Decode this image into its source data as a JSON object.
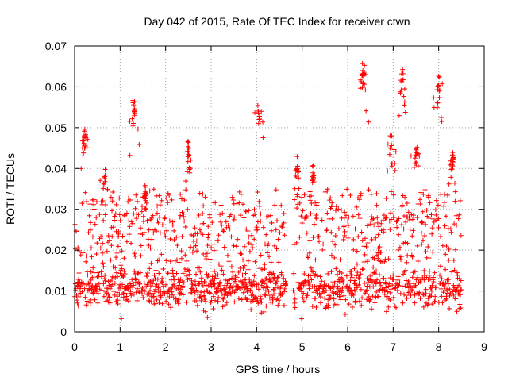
{
  "chart_data": {
    "type": "scatter",
    "title": "Day 042 of 2015, Rate Of TEC Index for receiver ctwn",
    "xlabel": "GPS time / hours",
    "ylabel": "ROTI / TECUs",
    "xlim": [
      0,
      9
    ],
    "ylim": [
      0,
      0.07
    ],
    "xticks": [
      0,
      1,
      2,
      3,
      4,
      5,
      6,
      7,
      8,
      9
    ],
    "xtick_labels": [
      "0",
      "1",
      "2",
      "3",
      "4",
      "5",
      "6",
      "7",
      "8",
      "9"
    ],
    "yticks": [
      0,
      0.01,
      0.02,
      0.03,
      0.04,
      0.05,
      0.06,
      0.07
    ],
    "ytick_labels": [
      "0",
      "0.01",
      "0.02",
      "0.03",
      "0.04",
      "0.05",
      "0.06",
      "0.07"
    ],
    "grid": true,
    "marker": "+",
    "color": "#ff0000",
    "gap_hours": [
      4.65,
      4.8
    ],
    "x_end": 8.5,
    "peaks": [
      {
        "x": 0.22,
        "y": 0.05
      },
      {
        "x": 0.65,
        "y": 0.04
      },
      {
        "x": 1.3,
        "y": 0.057
      },
      {
        "x": 1.55,
        "y": 0.036
      },
      {
        "x": 2.5,
        "y": 0.047
      },
      {
        "x": 4.05,
        "y": 0.056
      },
      {
        "x": 4.9,
        "y": 0.043
      },
      {
        "x": 5.25,
        "y": 0.041
      },
      {
        "x": 6.35,
        "y": 0.066
      },
      {
        "x": 6.95,
        "y": 0.048
      },
      {
        "x": 7.2,
        "y": 0.065
      },
      {
        "x": 7.5,
        "y": 0.046
      },
      {
        "x": 8.0,
        "y": 0.063
      },
      {
        "x": 8.3,
        "y": 0.045
      }
    ]
  }
}
